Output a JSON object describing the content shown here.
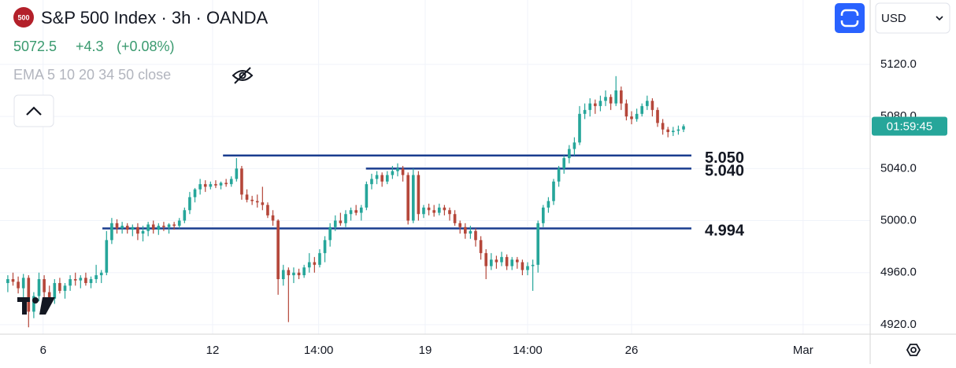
{
  "chart_data": {
    "type": "ohlc",
    "symbol_badge": "500",
    "title": "S&P 500 Index · 3h · OANDA",
    "last": "5072.5",
    "change": "+4.3",
    "change_pct": "(+0.08%)",
    "indicator": "EMA 5 10 20 34 50 close",
    "currency": "USD",
    "countdown": "01:59:45",
    "up_color": "#26a69a",
    "down_color": "#b5473a",
    "level_color": "#1a3d8f",
    "xlim": [
      -1.5,
      165.9
    ],
    "ylim": [
      4912.7,
      5169.5
    ],
    "grid": true,
    "xticks": [
      {
        "value": 6.8,
        "label": "6"
      },
      {
        "value": 39.4,
        "label": "12"
      },
      {
        "value": 59.8,
        "label": "14:00"
      },
      {
        "value": 80.3,
        "label": "19"
      },
      {
        "value": 100,
        "label": "14:00"
      },
      {
        "value": 120,
        "label": "26"
      },
      {
        "value": 153,
        "label": "Mar"
      }
    ],
    "yticks": [
      {
        "value": 4920,
        "label": "4920.0"
      },
      {
        "value": 4960,
        "label": "4960.0"
      },
      {
        "value": 5000,
        "label": "5000.0"
      },
      {
        "value": 5040,
        "label": "5040.0"
      },
      {
        "value": 5080,
        "label": "5080.0"
      },
      {
        "value": 5120,
        "label": "5120.0"
      }
    ],
    "levels": [
      {
        "value": 5050,
        "label": "5.050",
        "from": 41.4
      },
      {
        "value": 5040,
        "label": "5.040",
        "from": 68.9
      },
      {
        "value": 4994,
        "label": "4.994",
        "from": 18.2
      }
    ],
    "ohlc": [
      [
        4952,
        4958,
        4945,
        4955
      ],
      [
        4955,
        4960,
        4950,
        4953
      ],
      [
        4953,
        4957,
        4944,
        4948
      ],
      [
        4948,
        4959,
        4940,
        4956
      ],
      [
        4956,
        4958,
        4918,
        4930
      ],
      [
        4930,
        4945,
        4925,
        4942
      ],
      [
        4942,
        4960,
        4938,
        4955
      ],
      [
        4955,
        4958,
        4940,
        4945
      ],
      [
        4945,
        4950,
        4935,
        4940
      ],
      [
        4940,
        4955,
        4936,
        4952
      ],
      [
        4952,
        4956,
        4944,
        4946
      ],
      [
        4946,
        4952,
        4940,
        4950
      ],
      [
        4950,
        4958,
        4946,
        4955
      ],
      [
        4955,
        4960,
        4950,
        4954
      ],
      [
        4954,
        4958,
        4948,
        4956
      ],
      [
        4956,
        4960,
        4950,
        4952
      ],
      [
        4952,
        4957,
        4948,
        4955
      ],
      [
        4955,
        4966,
        4952,
        4958
      ],
      [
        4958,
        4962,
        4952,
        4960
      ],
      [
        4960,
        4992,
        4958,
        4985
      ],
      [
        4985,
        5002,
        4982,
        4998
      ],
      [
        4998,
        5001,
        4990,
        4994
      ],
      [
        4994,
        4999,
        4990,
        4996
      ],
      [
        4996,
        4998,
        4990,
        4993
      ],
      [
        4993,
        4997,
        4988,
        4995
      ],
      [
        4995,
        4998,
        4985,
        4990
      ],
      [
        4990,
        4996,
        4984,
        4992
      ],
      [
        4992,
        4999,
        4988,
        4997
      ],
      [
        4997,
        5000,
        4990,
        4993
      ],
      [
        4993,
        4998,
        4989,
        4996
      ],
      [
        4996,
        4999,
        4992,
        4995
      ],
      [
        4995,
        4998,
        4990,
        4997
      ],
      [
        4997,
        4999,
        4993,
        4996
      ],
      [
        4996,
        5002,
        4994,
        5000
      ],
      [
        5000,
        5010,
        4998,
        5008
      ],
      [
        5008,
        5022,
        5005,
        5018
      ],
      [
        5018,
        5025,
        5014,
        5024
      ],
      [
        5024,
        5032,
        5020,
        5028
      ],
      [
        5028,
        5031,
        5022,
        5026
      ],
      [
        5026,
        5030,
        5024,
        5028
      ],
      [
        5028,
        5031,
        5025,
        5027
      ],
      [
        5027,
        5030,
        5024,
        5029
      ],
      [
        5029,
        5032,
        5026,
        5028
      ],
      [
        5028,
        5034,
        5026,
        5032
      ],
      [
        5032,
        5048,
        5030,
        5040
      ],
      [
        5040,
        5042,
        5016,
        5020
      ],
      [
        5020,
        5024,
        5014,
        5016
      ],
      [
        5016,
        5019,
        5012,
        5015
      ],
      [
        5015,
        5020,
        5010,
        5014
      ],
      [
        5014,
        5026,
        5008,
        5012
      ],
      [
        5012,
        5014,
        5002,
        5004
      ],
      [
        5004,
        5008,
        4996,
        5000
      ],
      [
        5000,
        5001,
        4943,
        4955
      ],
      [
        4955,
        4966,
        4950,
        4962
      ],
      [
        4962,
        4964,
        4922,
        4958
      ],
      [
        4958,
        4964,
        4952,
        4960
      ],
      [
        4960,
        4963,
        4955,
        4958
      ],
      [
        4958,
        4966,
        4956,
        4964
      ],
      [
        4964,
        4975,
        4960,
        4968
      ],
      [
        4968,
        4972,
        4960,
        4966
      ],
      [
        4966,
        4978,
        4964,
        4975
      ],
      [
        4975,
        4988,
        4968,
        4985
      ],
      [
        4985,
        4998,
        4980,
        4995
      ],
      [
        4995,
        5004,
        4992,
        5000
      ],
      [
        5000,
        5006,
        4996,
        4998
      ],
      [
        4998,
        5008,
        4995,
        5005
      ],
      [
        5005,
        5010,
        5000,
        5008
      ],
      [
        5008,
        5012,
        5004,
        5006
      ],
      [
        5006,
        5012,
        5000,
        5010
      ],
      [
        5010,
        5030,
        5008,
        5028
      ],
      [
        5028,
        5036,
        5024,
        5032
      ],
      [
        5032,
        5038,
        5028,
        5035
      ],
      [
        5035,
        5037,
        5026,
        5030
      ],
      [
        5030,
        5038,
        5028,
        5035
      ],
      [
        5035,
        5042,
        5032,
        5038
      ],
      [
        5038,
        5044,
        5034,
        5040
      ],
      [
        5040,
        5042,
        5030,
        5035
      ],
      [
        5035,
        5037,
        4997,
        5000
      ],
      [
        5000,
        5040,
        4998,
        5035
      ],
      [
        5035,
        5038,
        5000,
        5005
      ],
      [
        5005,
        5012,
        5002,
        5010
      ],
      [
        5010,
        5013,
        5004,
        5008
      ],
      [
        5008,
        5012,
        5003,
        5006
      ],
      [
        5006,
        5013,
        5004,
        5010
      ],
      [
        5010,
        5012,
        5004,
        5008
      ],
      [
        5008,
        5010,
        5000,
        5005
      ],
      [
        5005,
        5008,
        4996,
        4998
      ],
      [
        4998,
        5000,
        4990,
        4995
      ],
      [
        4995,
        4998,
        4986,
        4990
      ],
      [
        4990,
        4996,
        4986,
        4992
      ],
      [
        4992,
        4994,
        4980,
        4985
      ],
      [
        4985,
        4988,
        4970,
        4975
      ],
      [
        4975,
        4978,
        4955,
        4965
      ],
      [
        4965,
        4975,
        4962,
        4970
      ],
      [
        4970,
        4973,
        4963,
        4968
      ],
      [
        4968,
        4976,
        4965,
        4972
      ],
      [
        4972,
        4974,
        4962,
        4965
      ],
      [
        4965,
        4972,
        4962,
        4970
      ],
      [
        4970,
        4972,
        4963,
        4968
      ],
      [
        4968,
        4970,
        4958,
        4962
      ],
      [
        4962,
        4968,
        4958,
        4965
      ],
      [
        4965,
        4970,
        4946,
        4966
      ],
      [
        4966,
        5000,
        4960,
        4998
      ],
      [
        4998,
        5012,
        4995,
        5010
      ],
      [
        5010,
        5018,
        5006,
        5015
      ],
      [
        5015,
        5032,
        5012,
        5030
      ],
      [
        5030,
        5042,
        5026,
        5040
      ],
      [
        5040,
        5050,
        5036,
        5048
      ],
      [
        5048,
        5058,
        5044,
        5055
      ],
      [
        5055,
        5064,
        5050,
        5060
      ],
      [
        5060,
        5088,
        5058,
        5082
      ],
      [
        5082,
        5090,
        5078,
        5085
      ],
      [
        5085,
        5094,
        5080,
        5090
      ],
      [
        5090,
        5093,
        5082,
        5088
      ],
      [
        5088,
        5096,
        5084,
        5092
      ],
      [
        5092,
        5100,
        5088,
        5095
      ],
      [
        5095,
        5097,
        5085,
        5090
      ],
      [
        5090,
        5111,
        5088,
        5100
      ],
      [
        5100,
        5103,
        5085,
        5090
      ],
      [
        5090,
        5093,
        5077,
        5080
      ],
      [
        5080,
        5084,
        5074,
        5078
      ],
      [
        5078,
        5086,
        5076,
        5082
      ],
      [
        5082,
        5090,
        5080,
        5088
      ],
      [
        5088,
        5096,
        5085,
        5092
      ],
      [
        5092,
        5094,
        5080,
        5085
      ],
      [
        5085,
        5087,
        5072,
        5075
      ],
      [
        5075,
        5078,
        5066,
        5070
      ],
      [
        5070,
        5072,
        5064,
        5068
      ],
      [
        5068,
        5072,
        5065,
        5069
      ],
      [
        5069,
        5073,
        5066,
        5070
      ],
      [
        5070,
        5074,
        5068,
        5072.5
      ]
    ]
  }
}
